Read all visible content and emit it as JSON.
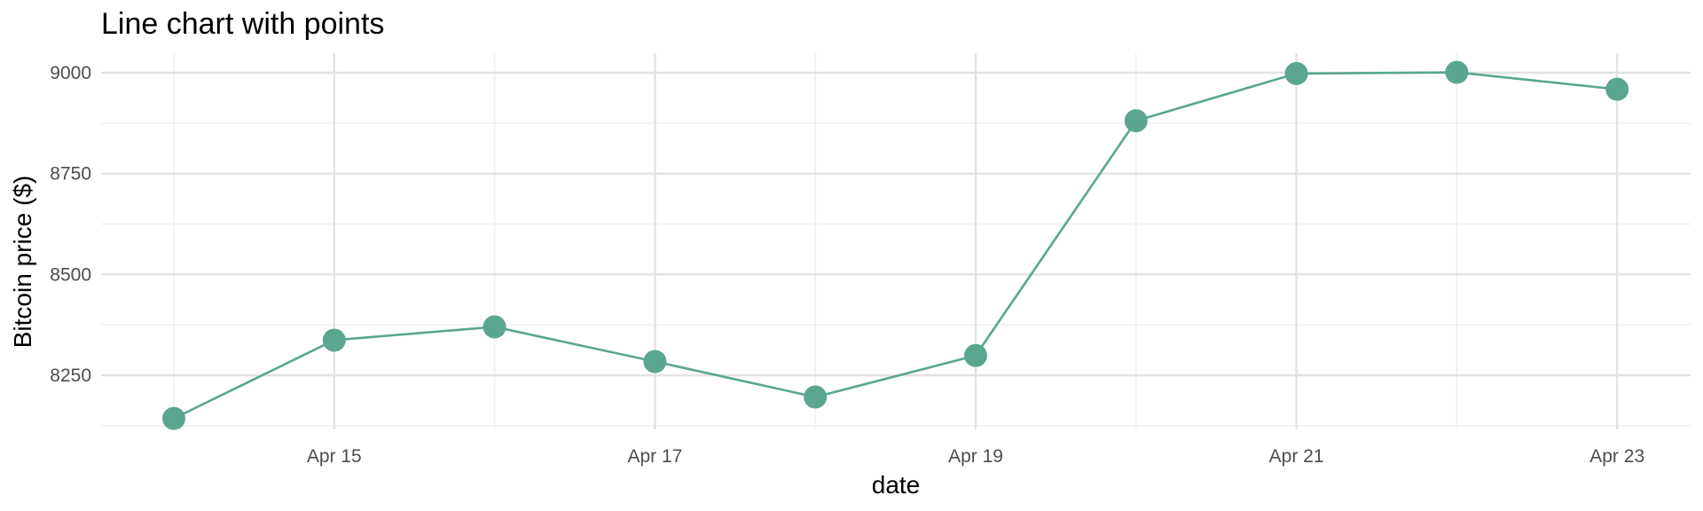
{
  "chart_data": {
    "type": "line",
    "title": "Line chart with points",
    "xlabel": "date",
    "ylabel": "Bitcoin price ($)",
    "color": "#5aa690",
    "x": [
      "Apr 14",
      "Apr 15",
      "Apr 16",
      "Apr 17",
      "Apr 18",
      "Apr 19",
      "Apr 20",
      "Apr 21",
      "Apr 22",
      "Apr 23"
    ],
    "values": [
      8143,
      8337,
      8370,
      8284,
      8196,
      8299,
      8881,
      8998,
      9001,
      8959
    ],
    "x_ticks": [
      "Apr 15",
      "Apr 17",
      "Apr 19",
      "Apr 21",
      "Apr 23"
    ],
    "y_ticks": [
      8250,
      8500,
      8750,
      9000
    ],
    "ylim": [
      8120,
      9010
    ],
    "grid": true,
    "legend": "none"
  }
}
